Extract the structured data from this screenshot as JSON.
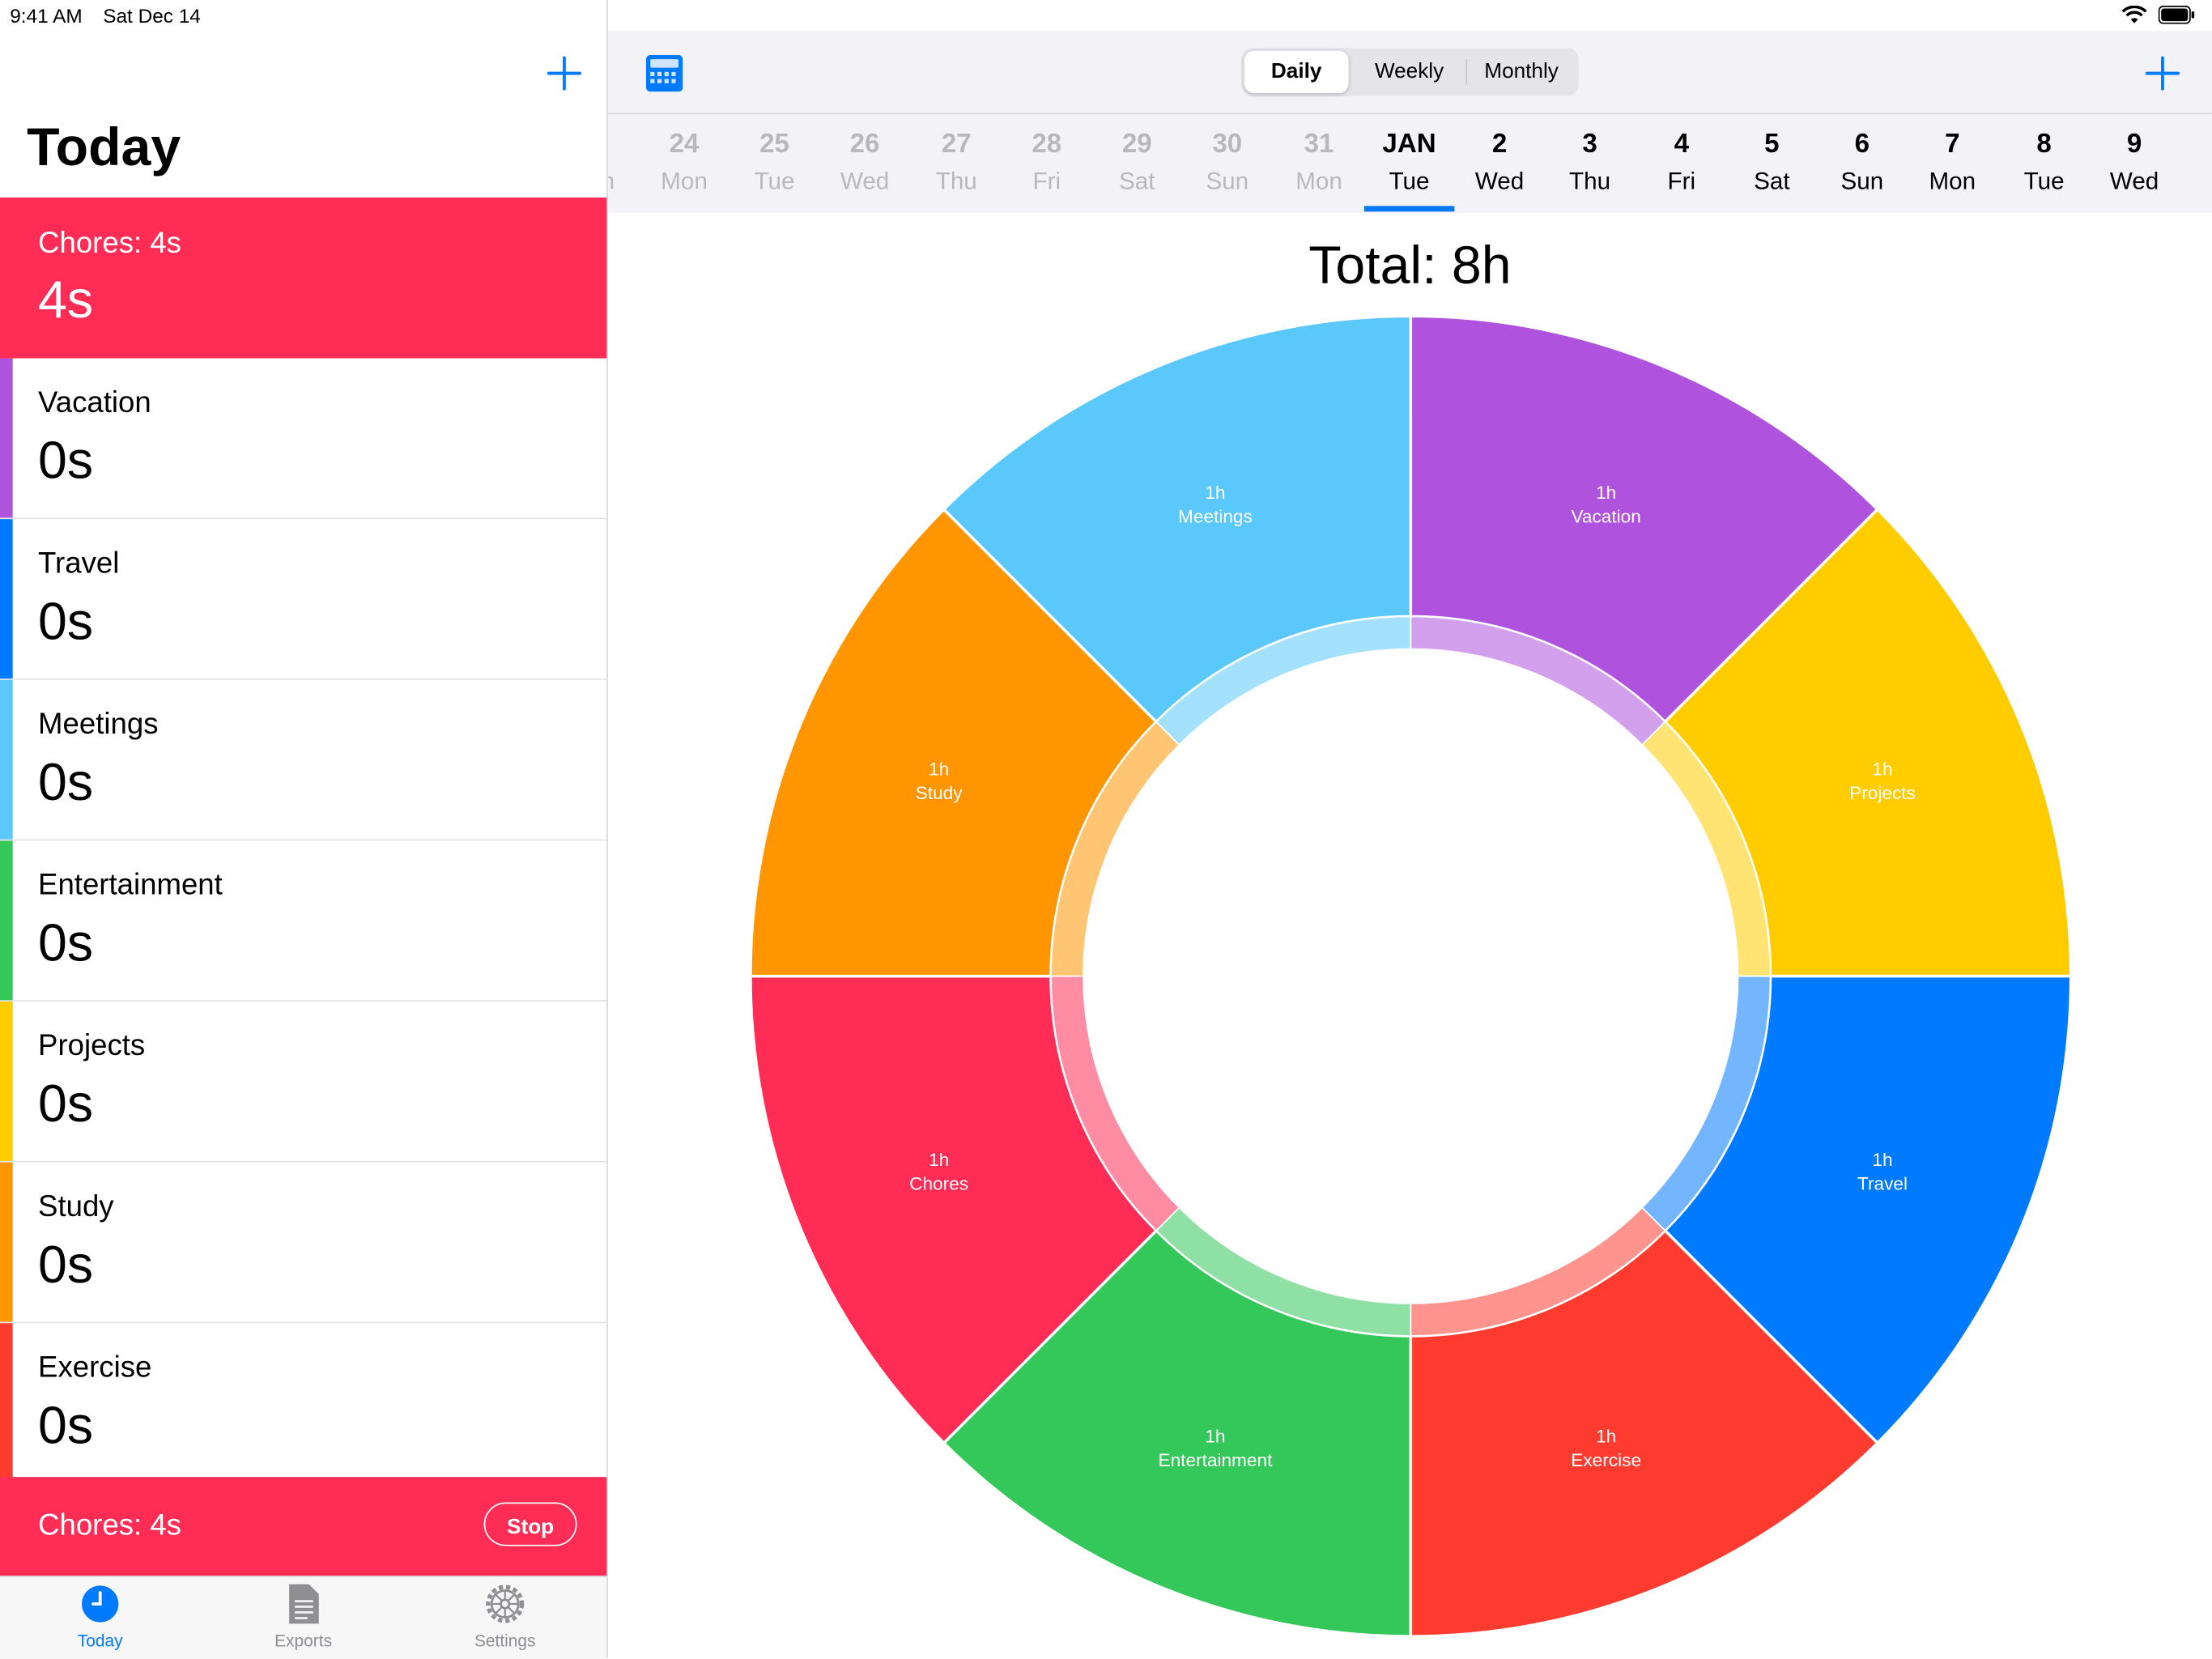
{
  "status": {
    "time": "9:41 AM",
    "date": "Sat Dec 14"
  },
  "sidebar": {
    "title": "Today",
    "active": {
      "name": "Chores: 4s",
      "value": "4s",
      "color": "#ff2d55"
    },
    "items": [
      {
        "name": "Vacation",
        "value": "0s",
        "color": "#af52de"
      },
      {
        "name": "Travel",
        "value": "0s",
        "color": "#007aff"
      },
      {
        "name": "Meetings",
        "value": "0s",
        "color": "#5ac8fa"
      },
      {
        "name": "Entertainment",
        "value": "0s",
        "color": "#34c759"
      },
      {
        "name": "Projects",
        "value": "0s",
        "color": "#ffcc00"
      },
      {
        "name": "Study",
        "value": "0s",
        "color": "#ff9500"
      },
      {
        "name": "Exercise",
        "value": "0s",
        "color": "#ff3b30"
      }
    ],
    "timer": {
      "label": "Chores: 4s",
      "stop_label": "Stop"
    }
  },
  "tabs": [
    {
      "label": "Today",
      "icon": "clock-icon"
    },
    {
      "label": "Exports",
      "icon": "document-icon"
    },
    {
      "label": "Settings",
      "icon": "gear-icon"
    }
  ],
  "segmented": {
    "options": [
      "Daily",
      "Weekly",
      "Monthly"
    ],
    "selected": "Daily"
  },
  "dates": [
    {
      "num": "24",
      "wd": "Mon"
    },
    {
      "num": "25",
      "wd": "Tue"
    },
    {
      "num": "26",
      "wd": "Wed"
    },
    {
      "num": "27",
      "wd": "Thu"
    },
    {
      "num": "28",
      "wd": "Fri"
    },
    {
      "num": "29",
      "wd": "Sat"
    },
    {
      "num": "30",
      "wd": "Sun"
    },
    {
      "num": "31",
      "wd": "Mon"
    },
    {
      "num": "JAN",
      "wd": "Tue",
      "selected": true
    },
    {
      "num": "2",
      "wd": "Wed"
    },
    {
      "num": "3",
      "wd": "Thu"
    },
    {
      "num": "4",
      "wd": "Fri"
    },
    {
      "num": "5",
      "wd": "Sat"
    },
    {
      "num": "6",
      "wd": "Sun"
    },
    {
      "num": "7",
      "wd": "Mon"
    },
    {
      "num": "8",
      "wd": "Tue"
    },
    {
      "num": "9",
      "wd": "Wed"
    }
  ],
  "chart_data": {
    "type": "pie",
    "title": "Total: 8h",
    "slices": [
      {
        "label": "Vacation",
        "value": 1,
        "display": "1h",
        "color": "#af52de"
      },
      {
        "label": "Projects",
        "value": 1,
        "display": "1h",
        "color": "#ffcc00"
      },
      {
        "label": "Travel",
        "value": 1,
        "display": "1h",
        "color": "#007aff"
      },
      {
        "label": "Exercise",
        "value": 1,
        "display": "1h",
        "color": "#ff3b30"
      },
      {
        "label": "Entertainment",
        "value": 1,
        "display": "1h",
        "color": "#34c759"
      },
      {
        "label": "Chores",
        "value": 1,
        "display": "1h",
        "color": "#ff2d55"
      },
      {
        "label": "Study",
        "value": 1,
        "display": "1h",
        "color": "#ff9500"
      },
      {
        "label": "Meetings",
        "value": 1,
        "display": "1h",
        "color": "#5ac8fa"
      }
    ]
  }
}
